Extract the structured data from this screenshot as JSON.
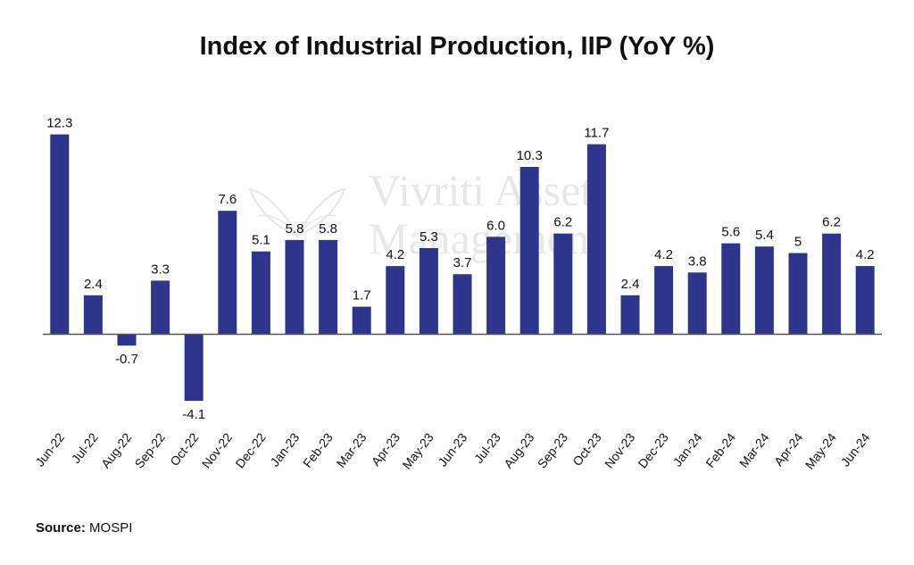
{
  "title": "Index of Industrial Production, IIP (YoY %)",
  "source": {
    "label": "Source:",
    "value": "MOSPI"
  },
  "watermark": {
    "line1": "Vivriti Asset",
    "line2": "Management"
  },
  "colors": {
    "bar": "#2f348c",
    "axis": "#555555",
    "text": "#111111"
  },
  "chart_data": {
    "type": "bar",
    "title": "Index of Industrial Production, IIP (YoY %)",
    "xlabel": "",
    "ylabel": "",
    "grid": false,
    "legend": "none",
    "categories": [
      "Jun-22",
      "Jul-22",
      "Aug-22",
      "Sep-22",
      "Oct-22",
      "Nov-22",
      "Dec-22",
      "Jan-23",
      "Feb-23",
      "Mar-23",
      "Apr-23",
      "May-23",
      "Jun-23",
      "Jul-23",
      "Aug-23",
      "Sep-23",
      "Oct-23",
      "Nov-23",
      "Dec-23",
      "Jan-24",
      "Feb-24",
      "Mar-24",
      "Apr-24",
      "May-24",
      "Jun-24"
    ],
    "values": [
      12.3,
      2.4,
      -0.7,
      3.3,
      -4.1,
      7.6,
      5.1,
      5.8,
      5.8,
      1.7,
      4.2,
      5.3,
      3.7,
      6.0,
      10.3,
      6.2,
      11.7,
      2.4,
      4.2,
      3.8,
      5.6,
      5.4,
      5,
      6.2,
      4.2
    ],
    "labels": [
      "12.3",
      "2.4",
      "-0.7",
      "3.3",
      "-4.1",
      "7.6",
      "5.1",
      "5.8",
      "5.8",
      "1.7",
      "4.2",
      "5.3",
      "3.7",
      "6.0",
      "10.3",
      "6.2",
      "11.7",
      "2.4",
      "4.2",
      "3.8",
      "5.6",
      "5.4",
      "5",
      "6.2",
      "4.2"
    ],
    "ylim": [
      -5,
      13
    ]
  }
}
